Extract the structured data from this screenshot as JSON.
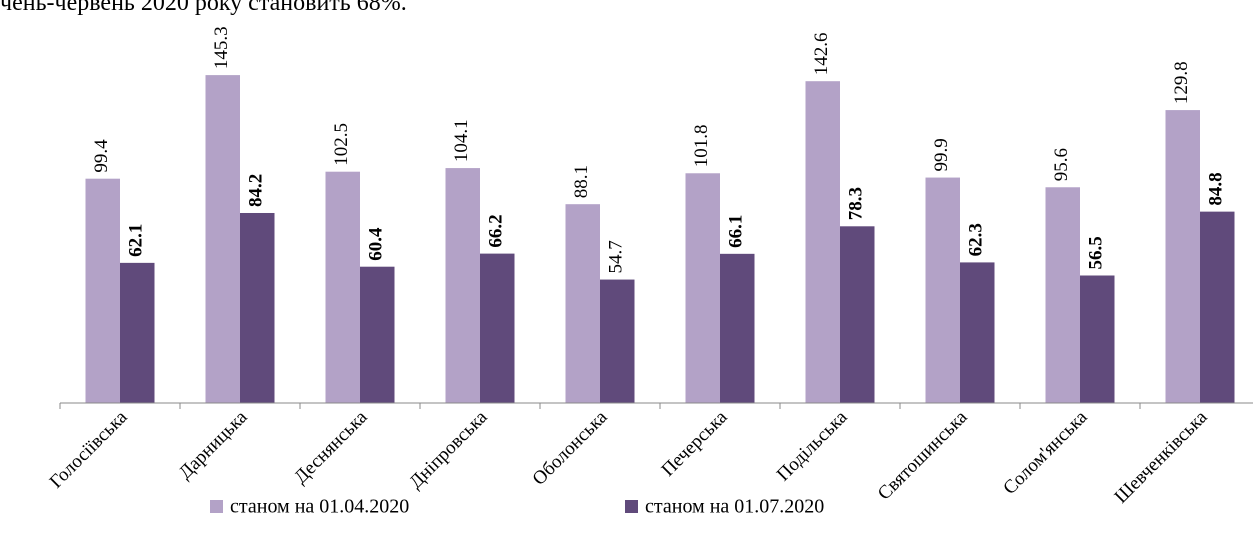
{
  "note_above": "чень-червень 2020 року становить 68%.",
  "chart_data": {
    "type": "bar",
    "categories": [
      "Голосіївська",
      "Дарницька",
      "Деснянська",
      "Дніпровська",
      "Оболонська",
      "Печерська",
      "Подільська",
      "Святошинська",
      "Солом'янська",
      "Шевченківська"
    ],
    "series": [
      {
        "name": "станом на 01.04.2020",
        "color": "#b3a2c7",
        "values": [
          99.4,
          145.3,
          102.5,
          104.1,
          88.1,
          101.8,
          142.6,
          99.9,
          95.6,
          129.8
        ],
        "value_label_bold": [
          false,
          false,
          false,
          false,
          false,
          false,
          false,
          false,
          false,
          false
        ]
      },
      {
        "name": "станом на 01.07.2020",
        "color": "#604a7b",
        "values": [
          62.1,
          84.2,
          60.4,
          66.2,
          54.7,
          66.1,
          78.3,
          62.3,
          56.5,
          84.8
        ],
        "value_label_bold": [
          true,
          true,
          true,
          true,
          false,
          true,
          true,
          true,
          true,
          true
        ]
      }
    ],
    "ylim": [
      0,
      150
    ],
    "legend": "bottom"
  }
}
